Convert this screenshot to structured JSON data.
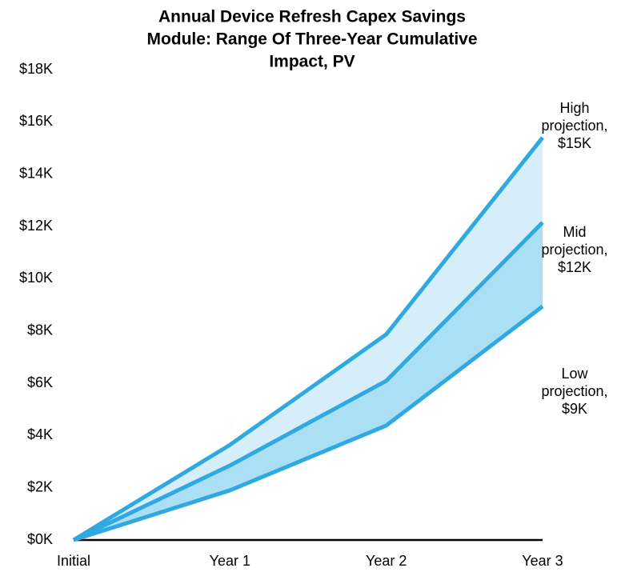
{
  "chart_data": {
    "type": "line",
    "title": [
      "Annual Device Refresh Capex Savings",
      "Module: Range Of Three-Year Cumulative",
      "Impact, PV"
    ],
    "categories": [
      "Initial",
      "Year 1",
      "Year 2",
      "Year 3"
    ],
    "series": [
      {
        "name": "High",
        "color": "#2fa9e0",
        "values": [
          0,
          3640,
          7870,
          15400
        ],
        "label": [
          "High",
          "projection,",
          "$15K"
        ]
      },
      {
        "name": "Mid",
        "color": "#2fa9e0",
        "values": [
          0,
          2850,
          6090,
          12150
        ],
        "label": [
          "Mid",
          "projection,",
          "$12K"
        ]
      },
      {
        "name": "Low",
        "color": "#2fa9e0",
        "values": [
          0,
          1900,
          4380,
          8940
        ],
        "label": [
          "Low",
          "projection,",
          "$9K"
        ]
      }
    ],
    "band_colors": [
      "#d6eefa",
      "#abdff4"
    ],
    "ylim": [
      0,
      18000
    ],
    "yticks": [
      {
        "value": 0,
        "label": "$0K"
      },
      {
        "value": 2000,
        "label": "$2K"
      },
      {
        "value": 4000,
        "label": "$4K"
      },
      {
        "value": 6000,
        "label": "$6K"
      },
      {
        "value": 8000,
        "label": "$8K"
      },
      {
        "value": 10000,
        "label": "$10K"
      },
      {
        "value": 12000,
        "label": "$12K"
      },
      {
        "value": 14000,
        "label": "$14K"
      },
      {
        "value": 16000,
        "label": "$16K"
      },
      {
        "value": 18000,
        "label": "$18K"
      }
    ],
    "grid": false
  }
}
